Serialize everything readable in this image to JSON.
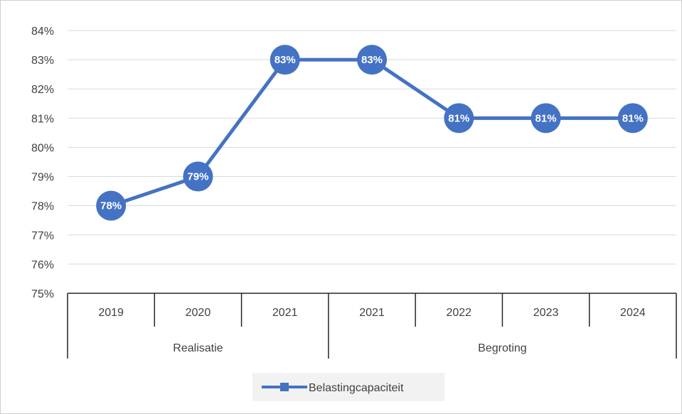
{
  "chart_data": {
    "type": "line",
    "categories": [
      {
        "label": "2019",
        "group": "Realisatie"
      },
      {
        "label": "2020",
        "group": "Realisatie"
      },
      {
        "label": "2021",
        "group": "Realisatie"
      },
      {
        "label": "2021",
        "group": "Begroting"
      },
      {
        "label": "2022",
        "group": "Begroting"
      },
      {
        "label": "2023",
        "group": "Begroting"
      },
      {
        "label": "2024",
        "group": "Begroting"
      }
    ],
    "groups": [
      "Realisatie",
      "Begroting"
    ],
    "series": [
      {
        "name": "Belastingcapaciteit",
        "values": [
          78,
          79,
          83,
          83,
          81,
          81,
          81
        ],
        "data_labels": [
          "78%",
          "79%",
          "83%",
          "83%",
          "81%",
          "81%",
          "81%"
        ]
      }
    ],
    "ylim": [
      75,
      84
    ],
    "yticks": [
      "75%",
      "76%",
      "77%",
      "78%",
      "79%",
      "80%",
      "81%",
      "82%",
      "83%",
      "84%"
    ],
    "legend_position": "bottom",
    "grid": true,
    "colors": {
      "series": "#4472c4",
      "grid": "#d9d9d9",
      "axis": "#262626",
      "text": "#404040"
    }
  }
}
